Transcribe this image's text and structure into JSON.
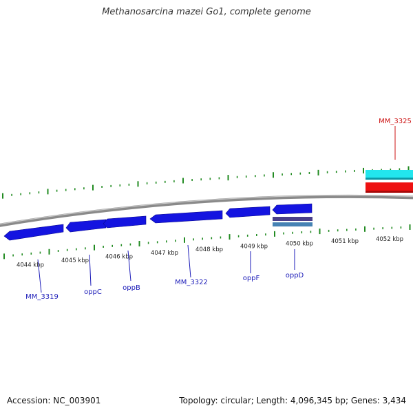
{
  "title": "Methanosarcina mazei Go1, complete genome",
  "footer": {
    "accession": "Accession: NC_003901",
    "stats": "Topology: circular; Length: 4,096,345 bp; Genes: 3,434"
  },
  "ruler_labels": [
    "4044 kbp",
    "4045 kbp",
    "4046 kbp",
    "4047 kbp",
    "4048 kbp",
    "4049 kbp",
    "4050 kbp",
    "4051 kbp",
    "4052 kbp"
  ],
  "gene_labels": [
    {
      "text": "MM_3319",
      "color": "#1a1ab8"
    },
    {
      "text": "oppC",
      "color": "#1a1ab8"
    },
    {
      "text": "oppB",
      "color": "#1a1ab8"
    },
    {
      "text": "MM_3322",
      "color": "#1a1ab8"
    },
    {
      "text": "oppF",
      "color": "#1a1ab8"
    },
    {
      "text": "oppD",
      "color": "#1a1ab8"
    },
    {
      "text": "MM_3325",
      "color": "#cc1111"
    }
  ],
  "colors": {
    "tick": "#228b22",
    "backbone": "#8a8a8a",
    "gene_forward": "#1414e0",
    "cyan_feature": "#22e6ee",
    "red_feature": "#ee1111"
  }
}
